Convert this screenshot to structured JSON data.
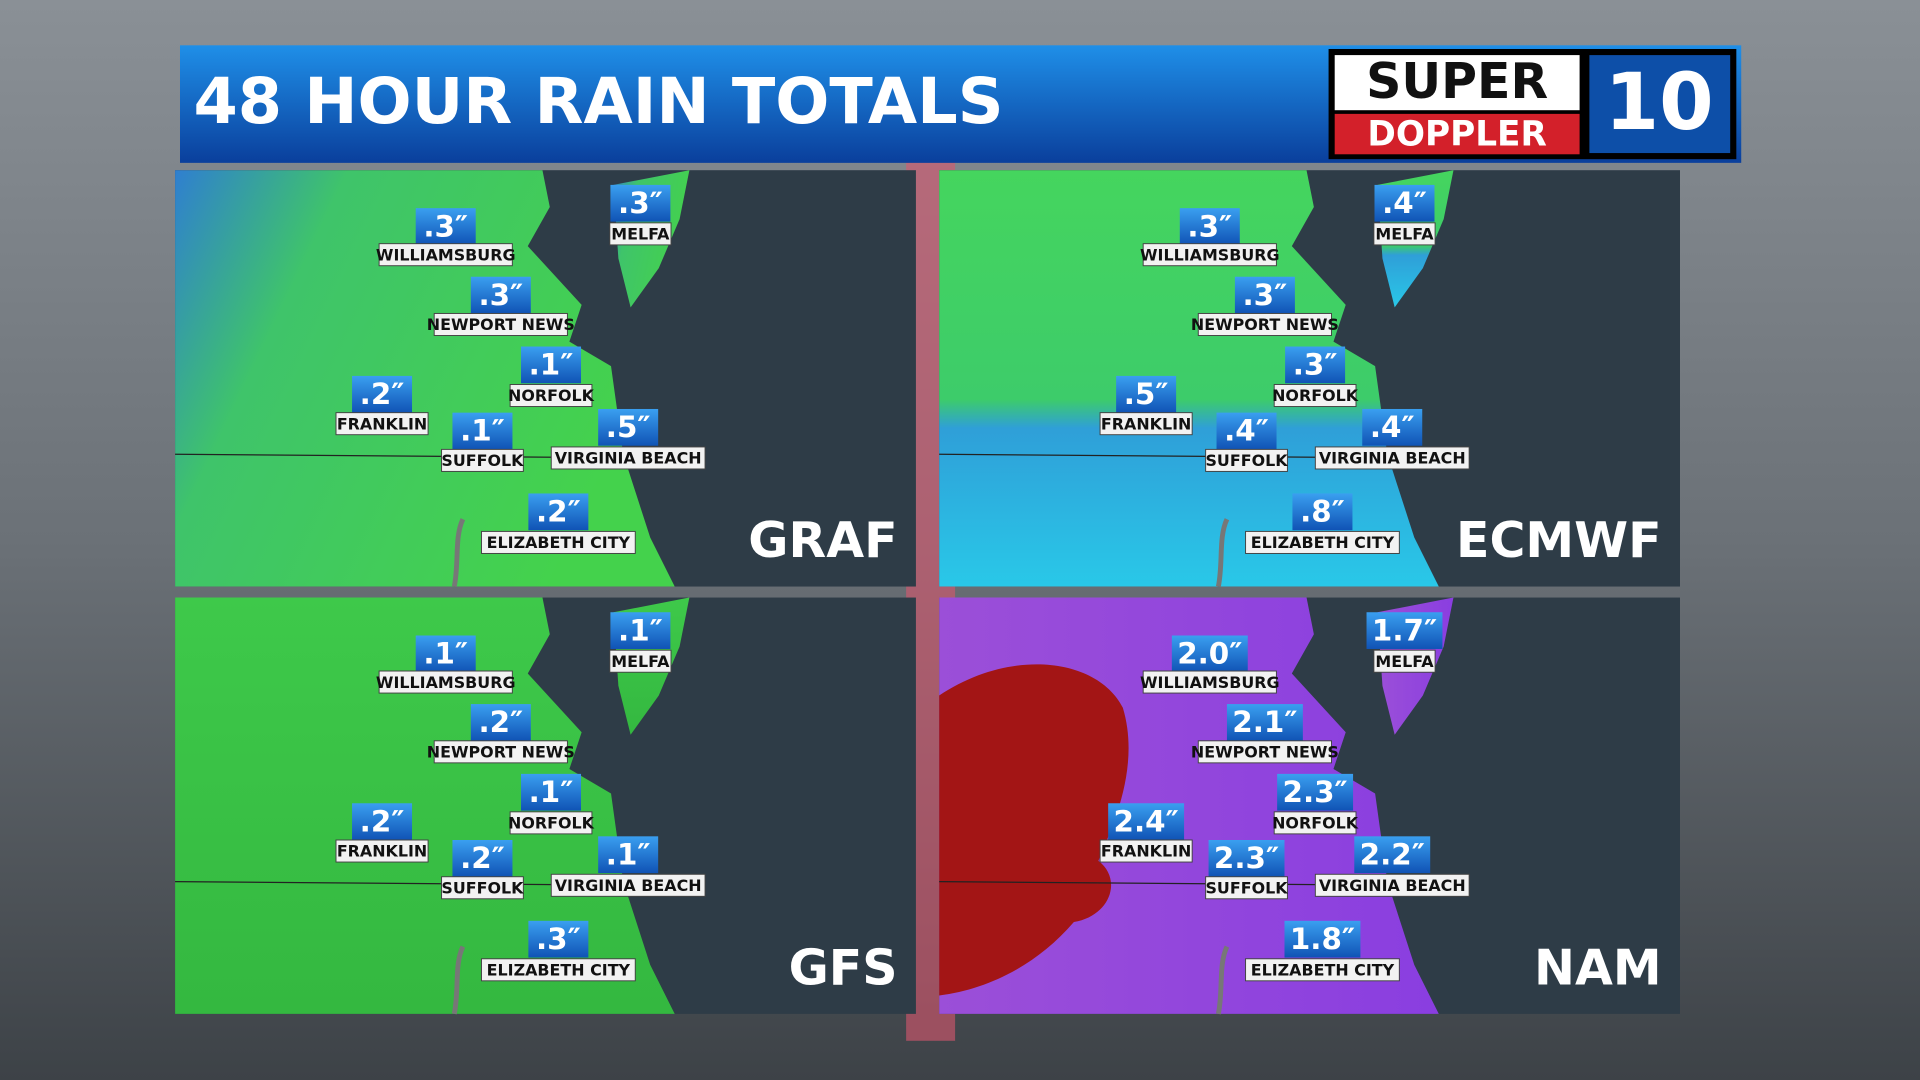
{
  "header": {
    "title": "48 HOUR RAIN TOTALS"
  },
  "logo": {
    "line1": "SUPER",
    "line2": "DOPPLER",
    "number": "10"
  },
  "panels": [
    {
      "model": "GRAF",
      "cities": [
        {
          "name": "WILLIAMSBURG",
          "value": ".3″"
        },
        {
          "name": "MELFA",
          "value": ".3″"
        },
        {
          "name": "NEWPORT NEWS",
          "value": ".3″"
        },
        {
          "name": "NORFOLK",
          "value": ".1″"
        },
        {
          "name": "FRANKLIN",
          "value": ".2″"
        },
        {
          "name": "SUFFOLK",
          "value": ".1″"
        },
        {
          "name": "VIRGINIA BEACH",
          "value": ".5″"
        },
        {
          "name": "ELIZABETH CITY",
          "value": ".2″"
        }
      ]
    },
    {
      "model": "ECMWF",
      "cities": [
        {
          "name": "WILLIAMSBURG",
          "value": ".3″"
        },
        {
          "name": "MELFA",
          "value": ".4″"
        },
        {
          "name": "NEWPORT NEWS",
          "value": ".3″"
        },
        {
          "name": "NORFOLK",
          "value": ".3″"
        },
        {
          "name": "FRANKLIN",
          "value": ".5″"
        },
        {
          "name": "SUFFOLK",
          "value": ".4″"
        },
        {
          "name": "VIRGINIA BEACH",
          "value": ".4″"
        },
        {
          "name": "ELIZABETH CITY",
          "value": ".8″"
        }
      ]
    },
    {
      "model": "GFS",
      "cities": [
        {
          "name": "WILLIAMSBURG",
          "value": ".1″"
        },
        {
          "name": "MELFA",
          "value": ".1″"
        },
        {
          "name": "NEWPORT NEWS",
          "value": ".2″"
        },
        {
          "name": "NORFOLK",
          "value": ".1″"
        },
        {
          "name": "FRANKLIN",
          "value": ".2″"
        },
        {
          "name": "SUFFOLK",
          "value": ".2″"
        },
        {
          "name": "VIRGINIA BEACH",
          "value": ".1″"
        },
        {
          "name": "ELIZABETH CITY",
          "value": ".3″"
        }
      ]
    },
    {
      "model": "NAM",
      "cities": [
        {
          "name": "WILLIAMSBURG",
          "value": "2.0″"
        },
        {
          "name": "MELFA",
          "value": "1.7″"
        },
        {
          "name": "NEWPORT NEWS",
          "value": "2.1″"
        },
        {
          "name": "NORFOLK",
          "value": "2.3″"
        },
        {
          "name": "FRANKLIN",
          "value": "2.4″"
        },
        {
          "name": "SUFFOLK",
          "value": "2.3″"
        },
        {
          "name": "VIRGINIA BEACH",
          "value": "2.2″"
        },
        {
          "name": "ELIZABETH CITY",
          "value": "1.8″"
        }
      ]
    }
  ]
}
